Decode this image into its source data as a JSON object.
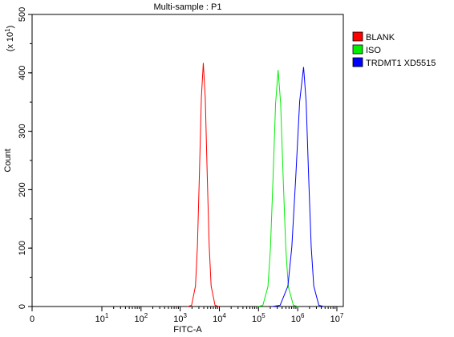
{
  "chart_data": {
    "type": "line",
    "title": "Multi-sample : P1",
    "xlabel": "FITC-A",
    "ylabel": "Count",
    "y_multiplier": {
      "prefix": "(x 10",
      "exponent": "1",
      "suffix": ")"
    },
    "xscale": "biexponential",
    "xlim": [
      0,
      14600000
    ],
    "xticks": [
      0,
      {
        "value": 10,
        "label": "10",
        "exponent": "1"
      },
      {
        "value": 100,
        "label": "10",
        "exponent": "2"
      },
      {
        "value": 1000,
        "label": "10",
        "exponent": "3"
      },
      {
        "value": 10000,
        "label": "10",
        "exponent": "4"
      },
      {
        "value": 100000,
        "label": "10",
        "exponent": "5"
      },
      {
        "value": 1000000,
        "label": "10",
        "exponent": "6"
      },
      {
        "value": 10000000,
        "label": "10",
        "exponent": "7"
      }
    ],
    "ylim": [
      0,
      500
    ],
    "yticks": [
      0,
      100,
      200,
      300,
      400,
      500
    ],
    "legend": "upper right",
    "series": [
      {
        "name": "BLANK",
        "color": "#ff0000",
        "x": [
          1549,
          1950,
          2455,
          2754,
          3090,
          3467,
          3890,
          4365,
          4898,
          5495,
          6166,
          7762,
          9772
        ],
        "values": [
          0,
          2,
          35,
          104,
          225,
          357,
          417,
          357,
          225,
          104,
          35,
          2,
          0
        ]
      },
      {
        "name": "ISO",
        "color": "#00ee00",
        "x": [
          95499,
          128825,
          173780,
          201837,
          234423,
          272270,
          316228,
          367282,
          426580,
          495450,
          575440,
          776247,
          1047129
        ],
        "values": [
          0,
          2,
          34,
          101,
          219,
          347,
          405,
          347,
          219,
          101,
          34,
          2,
          0
        ]
      },
      {
        "name": "TRDMT1 XD5515",
        "color": "#0000ff",
        "x": [
          223872,
          354813,
          562341,
          707946,
          891251,
          1122018,
          1412538,
          1640590,
          1905461,
          2213095,
          2570396,
          3467369,
          4677351
        ],
        "values": [
          0,
          2,
          35,
          102,
          221,
          351,
          410,
          351,
          221,
          102,
          35,
          2,
          0
        ]
      }
    ]
  }
}
